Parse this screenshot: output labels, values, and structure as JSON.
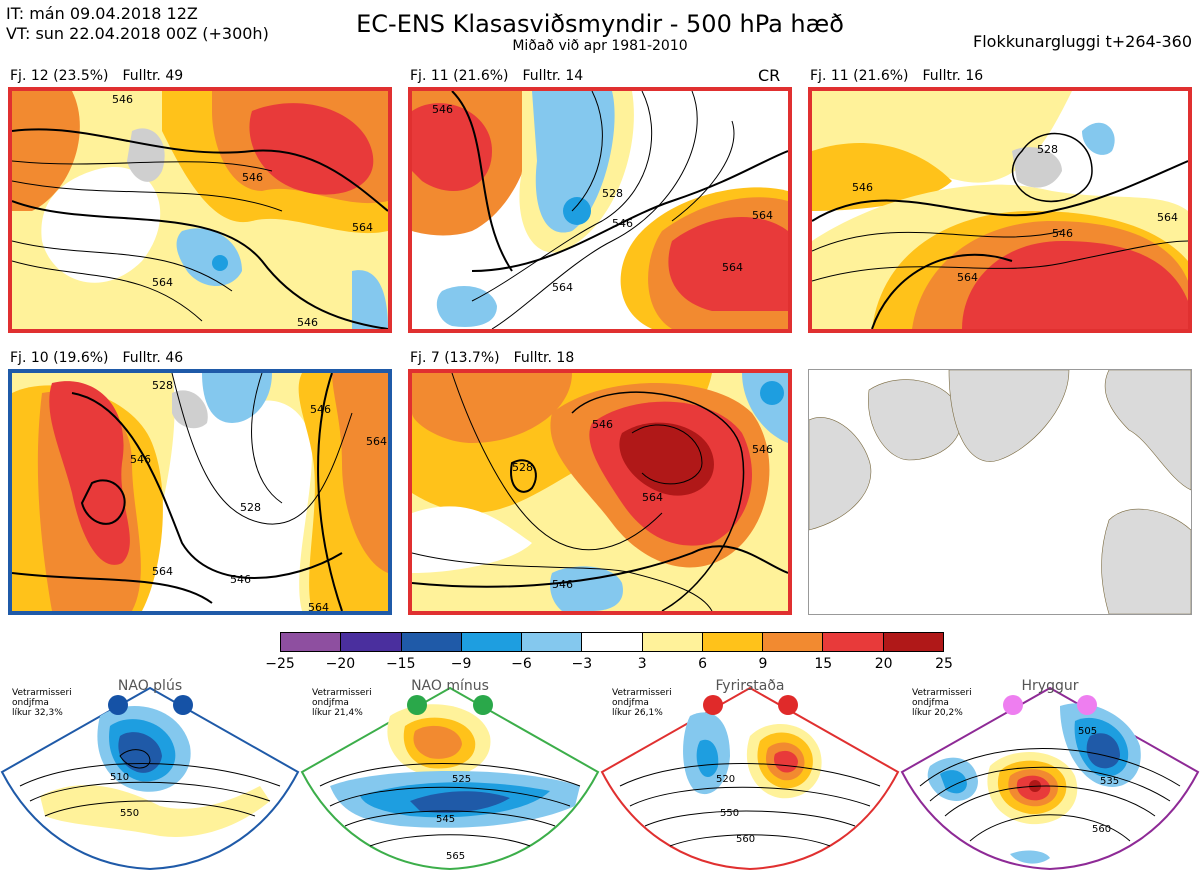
{
  "header": {
    "it_line": "IT: mán 09.04.2018 12Z",
    "vt_line": "VT: sun 22.04.2018 00Z  (+300h)",
    "title": "EC-ENS Klasasviðsmyndir - 500 hPa hæð",
    "subtitle": "Miðað við apr 1981-2010",
    "window": "Flokkunargluggi t+264-360"
  },
  "panels": [
    {
      "cluster": "Fj. 12 (23.5%)",
      "rep": "Fulltr. 49",
      "tag": "",
      "border": "#e03030",
      "contours": [
        "546",
        "546",
        "564",
        "564",
        "546"
      ]
    },
    {
      "cluster": "Fj. 11 (21.6%)",
      "rep": "Fulltr. 14",
      "tag": "CR",
      "border": "#e03030",
      "contours": [
        "546",
        "528",
        "546",
        "564",
        "564",
        "564"
      ]
    },
    {
      "cluster": "Fj. 11 (21.6%)",
      "rep": "Fulltr. 16",
      "tag": "",
      "border": "#e03030",
      "contours": [
        "528",
        "546",
        "564",
        "564",
        "546"
      ]
    },
    {
      "cluster": "Fj. 10 (19.6%)",
      "rep": "Fulltr. 46",
      "tag": "",
      "border": "#1f5aa8",
      "contours": [
        "528",
        "546",
        "546",
        "528",
        "564",
        "546",
        "564",
        "564"
      ]
    },
    {
      "cluster": "Fj. 7 (13.7%)",
      "rep": "Fulltr. 18",
      "tag": "",
      "border": "#e03030",
      "contours": [
        "528",
        "546",
        "564",
        "546",
        "546"
      ]
    }
  ],
  "colorbar": {
    "colors": [
      "#8e4fa0",
      "#4a2f9e",
      "#1f5aa8",
      "#1e9ee0",
      "#84c8ee",
      "#ffffff",
      "#fff29a",
      "#ffc21a",
      "#f28a30",
      "#e83a3a",
      "#b01818"
    ],
    "ticks": [
      "−25",
      "−20",
      "−15",
      "−9",
      "−6",
      "−3",
      "3",
      "6",
      "9",
      "15",
      "20",
      "25"
    ]
  },
  "regimes": [
    {
      "name": "NAO plús",
      "note": [
        "Vetrarmisseri",
        "ondjfma",
        "líkur 32,3%"
      ],
      "color": "#1f5aa8",
      "dot": "#1552a6",
      "labels": [
        "510",
        "550"
      ]
    },
    {
      "name": "NAO mínus",
      "note": [
        "Vetrarmisseri",
        "ondjfma",
        "líkur 21,4%"
      ],
      "color": "#3cae4a",
      "dot": "#2aa84a",
      "labels": [
        "525",
        "545",
        "565"
      ]
    },
    {
      "name": "Fyrirstaða",
      "note": [
        "Vetrarmisseri",
        "ondjfma",
        "líkur 26,1%"
      ],
      "color": "#e03030",
      "dot": "#e02a2a",
      "labels": [
        "520",
        "550",
        "560"
      ]
    },
    {
      "name": "Hryggur",
      "note": [
        "Vetrarmisseri",
        "ondjfma",
        "líkur 20,2%"
      ],
      "color": "#8e2a96",
      "dot": "#ee7ef0",
      "labels": [
        "505",
        "535",
        "560"
      ]
    }
  ]
}
